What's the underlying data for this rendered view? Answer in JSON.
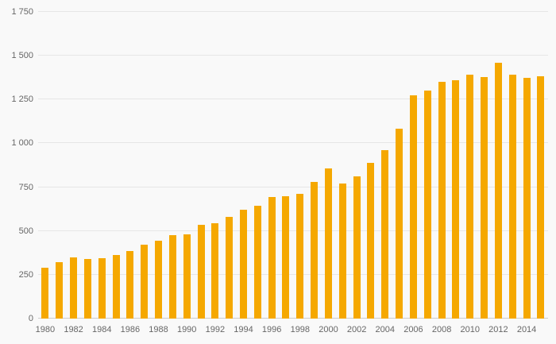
{
  "chart_data": {
    "type": "bar",
    "title": "",
    "xlabel": "",
    "ylabel": "",
    "x": [
      1980,
      1981,
      1982,
      1983,
      1984,
      1985,
      1986,
      1987,
      1988,
      1989,
      1990,
      1991,
      1992,
      1993,
      1994,
      1995,
      1996,
      1997,
      1998,
      1999,
      2000,
      2001,
      2002,
      2003,
      2004,
      2005,
      2006,
      2007,
      2008,
      2009,
      2010,
      2011,
      2012,
      2013,
      2014,
      2015
    ],
    "values": [
      290,
      320,
      350,
      340,
      345,
      365,
      385,
      420,
      445,
      475,
      480,
      535,
      545,
      580,
      620,
      645,
      695,
      700,
      710,
      780,
      855,
      770,
      810,
      890,
      960,
      1085,
      1275,
      1300,
      1350,
      1360,
      1390,
      1380,
      1460,
      1390,
      1375,
      1385
    ],
    "ylim": [
      0,
      1750
    ],
    "yticks": [
      0,
      250,
      500,
      750,
      1000,
      1250,
      1500,
      1750
    ],
    "ytick_labels": [
      "0",
      "250",
      "500",
      "750",
      "1 000",
      "1 250",
      "1 500",
      "1 750"
    ],
    "xtick_labels": [
      "1980",
      "1982",
      "1984",
      "1986",
      "1988",
      "1990",
      "1992",
      "1994",
      "1996",
      "1998",
      "2000",
      "2002",
      "2004",
      "2006",
      "2008",
      "2010",
      "2012",
      "2014"
    ],
    "xtick_every": 2,
    "grid": true,
    "legend": "none",
    "colors": {
      "bar": "#f5a800",
      "grid": "#e6e6e6",
      "axis": "#cccccc",
      "label": "#666666",
      "background": "#f9f9f9"
    }
  }
}
